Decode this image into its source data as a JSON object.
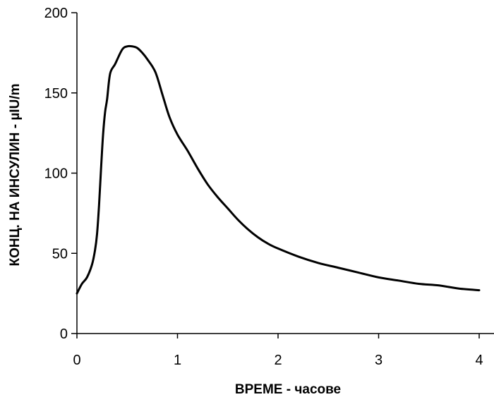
{
  "chart_data": {
    "type": "line",
    "title": "",
    "xlabel": "ВРЕМЕ - часове",
    "ylabel": "КОНЦ. НА ИНСУЛИН - µIU/m",
    "xlim": [
      0,
      4
    ],
    "ylim": [
      0,
      200
    ],
    "xticks": [
      0,
      1,
      2,
      3,
      4
    ],
    "yticks": [
      0,
      50,
      100,
      150,
      200
    ],
    "grid": false,
    "legend": "none",
    "line_color": "#000000",
    "series": [
      {
        "x": [
          0,
          0.05,
          0.1,
          0.15,
          0.18,
          0.2,
          0.22,
          0.24,
          0.26,
          0.28,
          0.3,
          0.33,
          0.38,
          0.45,
          0.5,
          0.55,
          0.6,
          0.65,
          0.7,
          0.78,
          0.85,
          0.92,
          1.0,
          1.1,
          1.2,
          1.3,
          1.4,
          1.5,
          1.6,
          1.7,
          1.8,
          1.9,
          2.0,
          2.2,
          2.4,
          2.6,
          2.8,
          3.0,
          3.2,
          3.4,
          3.6,
          3.8,
          4.0
        ],
        "y": [
          25,
          31,
          35,
          43,
          52,
          62,
          80,
          103,
          124,
          138,
          146,
          162,
          168,
          177,
          179,
          179,
          178,
          175,
          171,
          163,
          149,
          135,
          124,
          114,
          103,
          93,
          85,
          78,
          71,
          65,
          60,
          56,
          53,
          48,
          44,
          41,
          38,
          35,
          33,
          31,
          30,
          28,
          27
        ]
      }
    ]
  }
}
